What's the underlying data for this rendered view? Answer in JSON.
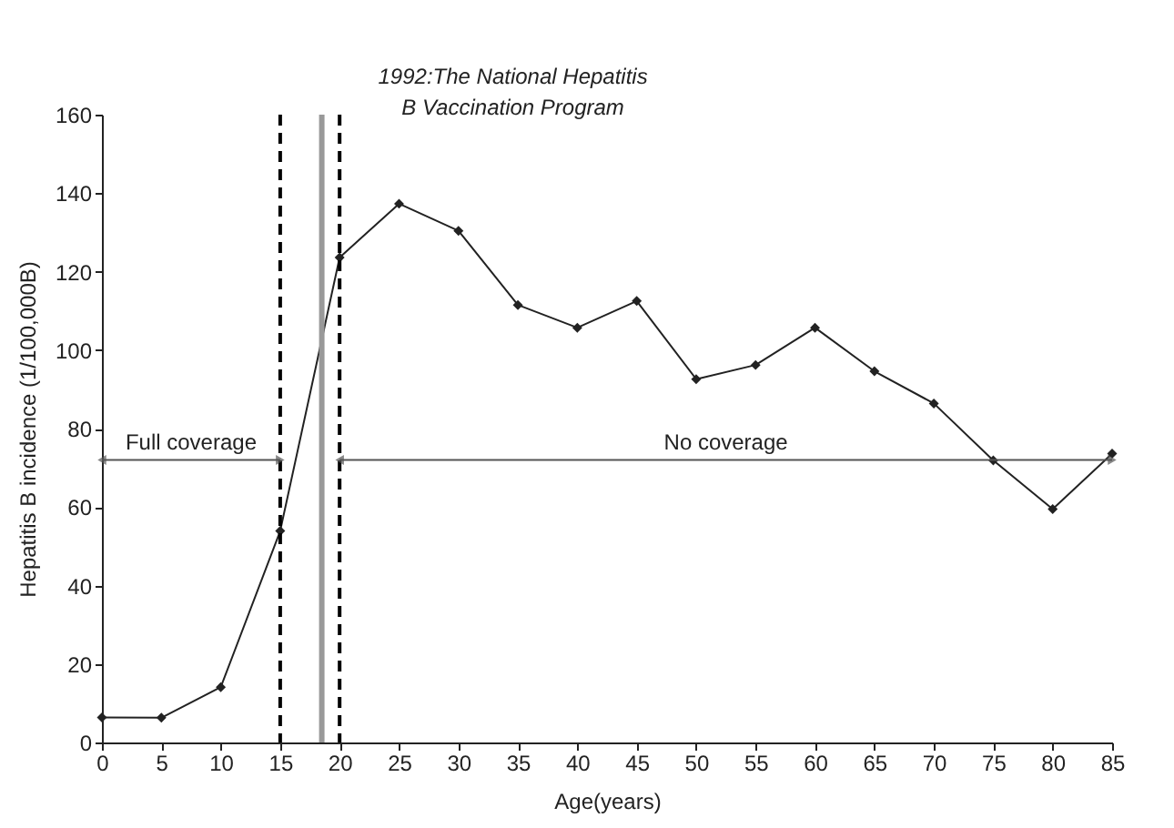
{
  "chart_data": {
    "type": "line",
    "xlabel": "Age(years)",
    "ylabel": "Hepatitis B incidence (1/100,000B)",
    "x": [
      0,
      5,
      10,
      15,
      20,
      25,
      30,
      35,
      40,
      45,
      50,
      55,
      60,
      65,
      70,
      75,
      80,
      85
    ],
    "series": [
      {
        "color": "#222222",
        "values": [
          6.4,
          6.3,
          14.1,
          53.9,
          123.6,
          137.3,
          130.4,
          111.5,
          105.7,
          112.5,
          92.6,
          96.2,
          105.7,
          94.6,
          86.4,
          71.9,
          59.5,
          73.6
        ]
      }
    ],
    "marker": "diamond",
    "xlim": [
      0,
      85
    ],
    "xticks": [
      0,
      5,
      10,
      15,
      20,
      25,
      30,
      35,
      40,
      45,
      50,
      55,
      60,
      65,
      70,
      75,
      80,
      85
    ],
    "ylim": [
      0,
      160
    ],
    "yticks": [
      0,
      20,
      40,
      60,
      80,
      100,
      120,
      140,
      160
    ],
    "ref_lines": [
      {
        "axis": "x",
        "value": 15,
        "color": "#000000",
        "line_style": "dashed"
      },
      {
        "axis": "x",
        "value": 18.5,
        "color": "#999999",
        "line_style": "solid",
        "label": "1992:The National Hepatitis B Vaccination Program"
      },
      {
        "axis": "x",
        "value": 20,
        "color": "#000000",
        "line_style": "dashed"
      }
    ],
    "annotations": [
      {
        "text": "Full coverage",
        "x": 15,
        "y": 72
      },
      "No coverage"
    ]
  }
}
